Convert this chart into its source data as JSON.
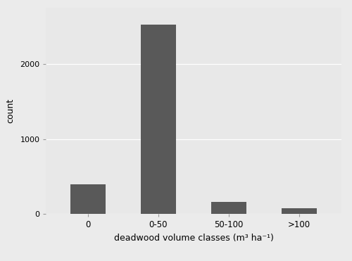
{
  "categories": [
    "0",
    "0-50",
    "50-100",
    ">100"
  ],
  "values": [
    400,
    2530,
    160,
    80
  ],
  "bar_color": "#595959",
  "background_color": "#EBEBEB",
  "panel_background": "#E8E8E8",
  "grid_color": "#FFFFFF",
  "xlabel": "deadwood volume classes (m³ ha⁻¹)",
  "ylabel": "count",
  "yticks": [
    0,
    1000,
    2000
  ],
  "ylim": [
    0,
    2750
  ],
  "bar_width": 0.5,
  "figsize": [
    5.0,
    3.71
  ],
  "dpi": 100
}
